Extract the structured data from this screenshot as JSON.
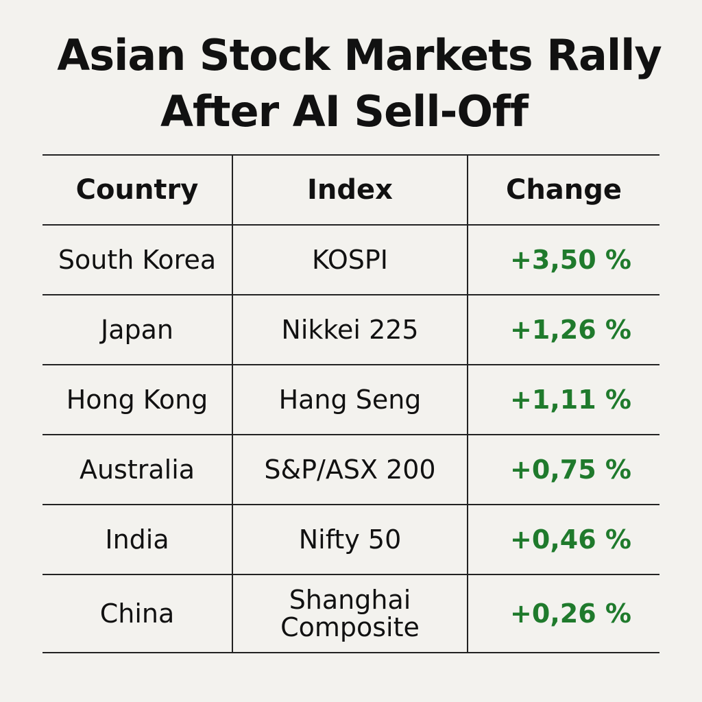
{
  "title": {
    "line1": "Asian Stock Markets Rally",
    "line2": "After AI Sell-Off"
  },
  "chart_data": {
    "type": "table",
    "title": "Asian Stock Markets Rally After AI Sell-Off",
    "columns": [
      "Country",
      "Index",
      "Change"
    ],
    "rows": [
      {
        "country": "South Korea",
        "index": "KOSPI",
        "index_line2": "",
        "change": "+3,50 %",
        "value": 3.5
      },
      {
        "country": "Japan",
        "index": "Nikkei 225",
        "index_line2": "",
        "change": "+1,26 %",
        "value": 1.26
      },
      {
        "country": "Hong Kong",
        "index": "Hang Seng",
        "index_line2": "",
        "change": "+1,11 %",
        "value": 1.11
      },
      {
        "country": "Australia",
        "index": "S&P/ASX 200",
        "index_line2": "",
        "change": "+0,75 %",
        "value": 0.75
      },
      {
        "country": "India",
        "index": "Nifty 50",
        "index_line2": "",
        "change": "+0,46 %",
        "value": 0.46
      },
      {
        "country": "China",
        "index": "Shanghai",
        "index_line2": "Composite",
        "change": "+0,26 %",
        "value": 0.26
      }
    ]
  },
  "colors": {
    "background": "#f3f2ee",
    "text": "#111111",
    "positive_change": "#1f7a2c",
    "rule": "#222222"
  }
}
